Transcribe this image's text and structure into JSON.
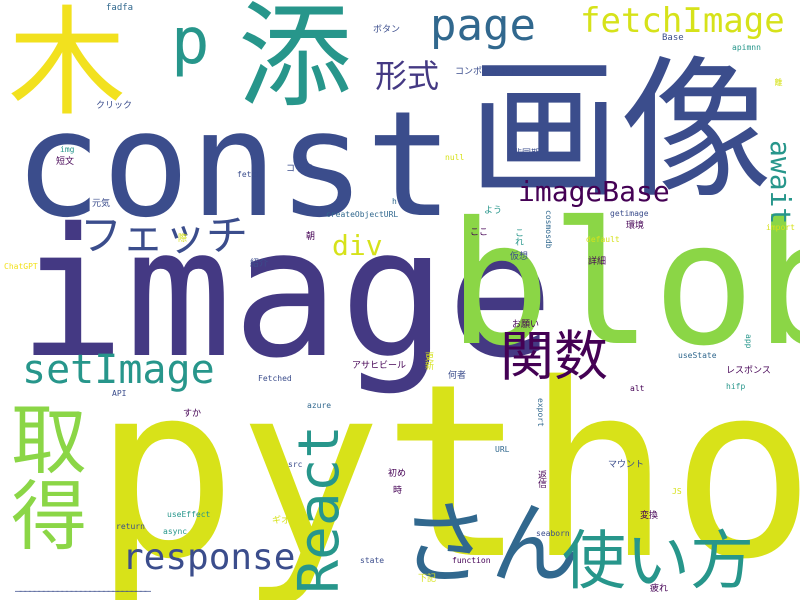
{
  "words": {
    "python": "python",
    "image": "image",
    "const": "const",
    "blob": "blob",
    "gazou": "画像",
    "ki": "木",
    "ten": "添",
    "p": "p",
    "page": "page",
    "fetchImage": "fetchImage",
    "keishiki": "形式",
    "imageBase": "imageBase",
    "await": "await",
    "fetch_kana": "フェッチ",
    "div": "div",
    "setImage": "setImage",
    "kansu": "関数",
    "shutoku": "取得",
    "response": "response",
    "react": "React",
    "san": "さん",
    "tsukaikata": "使い方",
    "dashes": "—————————————————————————————",
    "fadfa": "fadfa",
    "botan": "ボタン",
    "base_small": "Base",
    "apimnn": "apimnn",
    "component": "コンポーネント",
    "click": "クリック",
    "img": "img",
    "tanbun": "短文",
    "fetch": "fetch",
    "code": "コード",
    "null": "null",
    "hidoki": "非同期",
    "genki": "元気",
    "h": "h",
    "createObjectURL": "createObjectURL",
    "you": "よう",
    "getimage": "getimage",
    "import": "import",
    "sai": "際",
    "asa": "朝",
    "koko": "ここ",
    "kankyo": "環境",
    "kore": "これ",
    "chatgpt": "ChatGPT",
    "shokai": "紹介",
    "default": "default",
    "kaso": "仮想",
    "shosai": "詳細",
    "onegai": "お願い",
    "app": "app",
    "asahi": "アサヒビール",
    "koushin": "更新",
    "nanimono": "何者",
    "usestate": "useState",
    "response_jp": "レスポンス",
    "api": "API",
    "fetched": "Fetched",
    "alt": "alt",
    "hifp": "hifp",
    "suka": "すか",
    "azure": "azure",
    "export": "export",
    "url": "URL",
    "src": "src",
    "hajime": "初め",
    "mount": "マウント",
    "js": "JS",
    "toki": "時",
    "useeffect": "useEffect",
    "return": "return",
    "async": "async",
    "gio": "ギオ",
    "seaborn": "seaborn",
    "henkan": "変換",
    "state": "state",
    "function": "function",
    "kaki": "下記",
    "tsukare": "疲れ",
    "cosmosdb": "cosmosdb",
    "henkyaku": "返信",
    "ri": "離"
  },
  "colors": {
    "background": "#ffffff",
    "yellow": "#f2e11e",
    "lime": "#d6e21a",
    "green": "#8bd646",
    "teal": "#27968b",
    "darkblue": "#3b4d8c",
    "navy": "#443983",
    "purple": "#440154",
    "bluegrey": "#31688e"
  }
}
